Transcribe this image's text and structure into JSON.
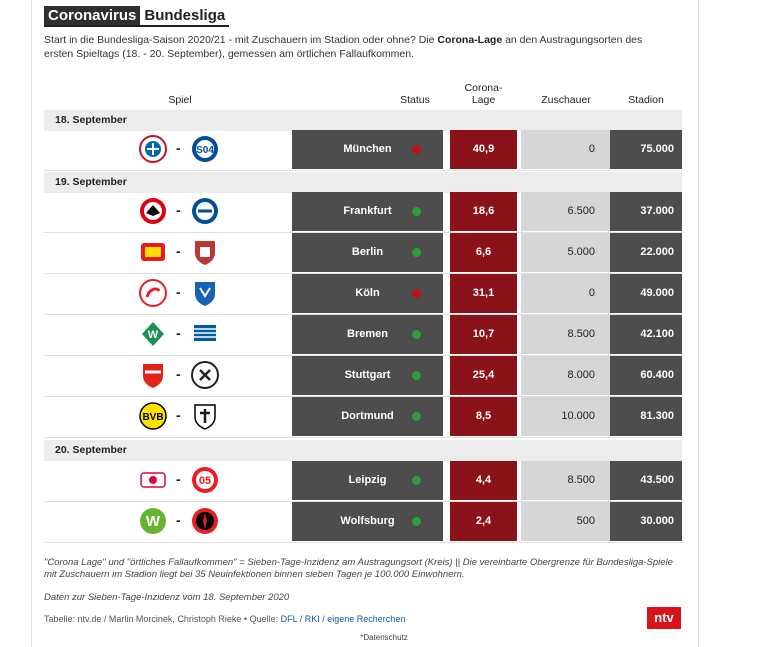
{
  "title": {
    "tag": "Coronavirus",
    "word": "Bundesliga"
  },
  "intro": {
    "part1": "Start in die Bundesliga-Saison 2020/21 - mit Zuschauern im Stadion oder ohne? Die ",
    "bold": "Corona-Lage",
    "part2": " an den Austragungsorten des ersten Spieltags (18. - 20. September), gemessen am örtlichen Fallaufkommen."
  },
  "headers": {
    "spiel": "Spiel",
    "status": "Status",
    "lage1": "Corona-",
    "lage2": "Lage",
    "zuschauer": "Zuschauer",
    "stadion": "Stadion"
  },
  "colors": {
    "green": "#2e9e3a",
    "red": "#c0101c",
    "lage_bg": "#8c1219",
    "dark": "#4d4d4d",
    "gray": "#d6d6d6"
  },
  "days": [
    {
      "label": "18. September",
      "games": [
        {
          "home": "bayern-logo",
          "away": "schalke-logo",
          "city": "München",
          "status": "red",
          "lage": "40,9",
          "zuschauer": "0",
          "stadion": "75.000"
        }
      ]
    },
    {
      "label": "19. September",
      "games": [
        {
          "home": "frankfurt-logo",
          "away": "bielefeld-logo",
          "city": "Frankfurt",
          "status": "green",
          "lage": "18,6",
          "zuschauer": "6.500",
          "stadion": "37.000"
        },
        {
          "home": "union-logo",
          "away": "augsburg-logo",
          "city": "Berlin",
          "status": "green",
          "lage": "6,6",
          "zuschauer": "5.000",
          "stadion": "22.000"
        },
        {
          "home": "koeln-logo",
          "away": "hoffenheim-logo",
          "city": "Köln",
          "status": "red",
          "lage": "31,1",
          "zuschauer": "0",
          "stadion": "49.000"
        },
        {
          "home": "bremen-logo",
          "away": "hertha-logo",
          "city": "Bremen",
          "status": "green",
          "lage": "10,7",
          "zuschauer": "8.500",
          "stadion": "42.100"
        },
        {
          "home": "stuttgart-logo",
          "away": "freiburg-logo",
          "city": "Stuttgart",
          "status": "green",
          "lage": "25,4",
          "zuschauer": "8.000",
          "stadion": "60.400"
        },
        {
          "home": "dortmund-logo",
          "away": "gladbach-logo",
          "city": "Dortmund",
          "status": "green",
          "lage": "8,5",
          "zuschauer": "10.000",
          "stadion": "81.300"
        }
      ]
    },
    {
      "label": "20. September",
      "games": [
        {
          "home": "leipzig-logo",
          "away": "mainz-logo",
          "city": "Leipzig",
          "status": "green",
          "lage": "4,4",
          "zuschauer": "8.500",
          "stadion": "43.500"
        },
        {
          "home": "wolfsburg-logo",
          "away": "leverkusen-logo",
          "city": "Wolfsburg",
          "status": "green",
          "lage": "2,4",
          "zuschauer": "500",
          "stadion": "30.000"
        }
      ]
    }
  ],
  "footnote1": "\"Corona Lage\" und \"örtliches Fallaufkommen\" = Sieben-Tage-Inzidenz am Austragungsort (Kreis) || Die vereinbarte Obergrenze für Bundesliga-Spiele mit Zuschauern im Stadion liegt bei 35 Neuinfektionen binnen sieben Tagen je 100.000 Einwohnern.",
  "footnote2": "Daten zur Sieben-Tage-Inzidenz vom 18. September 2020",
  "source": {
    "text": "Tabelle: ntv.de / Marlin Morcinek, Christoph Rieke • Quelle: ",
    "link": "DFL / RKI / eigene Recherchen"
  },
  "brand": "ntv",
  "datenschutz": "*Datenschutz"
}
